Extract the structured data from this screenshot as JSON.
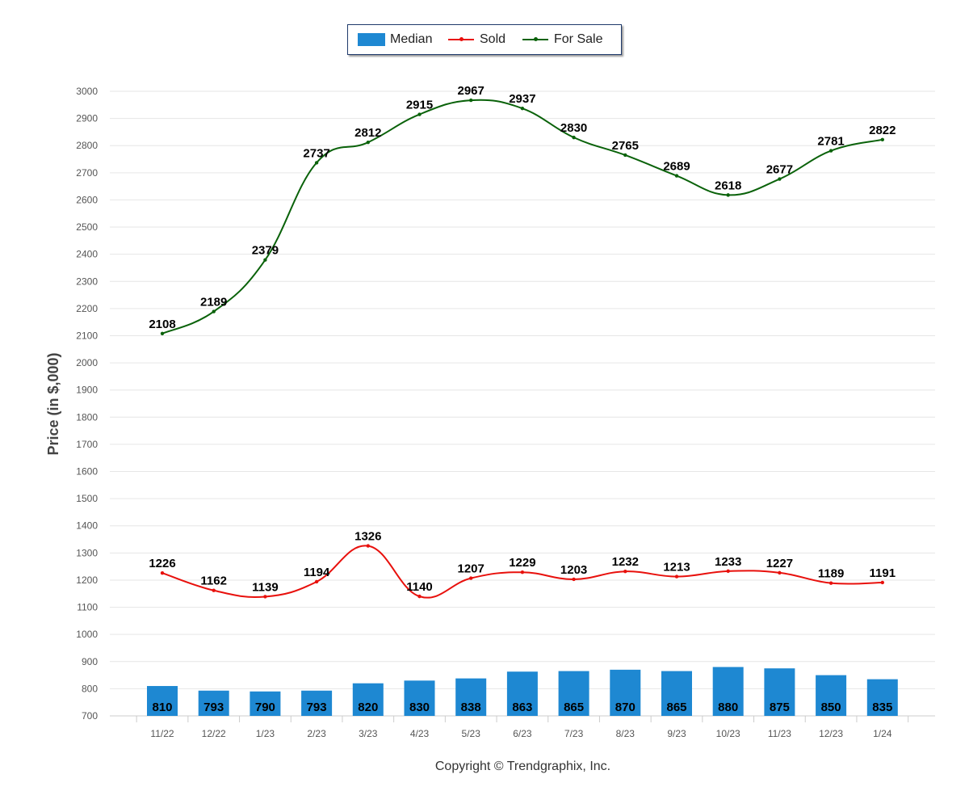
{
  "legend": {
    "median": "Median",
    "sold": "Sold",
    "for_sale": "For Sale"
  },
  "footer": {
    "copyright": "Copyright © Trendgraphix, Inc."
  },
  "colors": {
    "median": "#1e88d2",
    "sold": "#e8100c",
    "for_sale": "#0a620a",
    "grid": "#e6e6e6",
    "label": "#000000",
    "axis_text": "#555555"
  },
  "chart_data": {
    "type": "bar",
    "title": "",
    "xlabel": "",
    "ylabel": "Price (in $,000)",
    "ylim": [
      700,
      3000
    ],
    "yticks": [
      700,
      800,
      900,
      1000,
      1100,
      1200,
      1300,
      1400,
      1500,
      1600,
      1700,
      1800,
      1900,
      2000,
      2100,
      2200,
      2300,
      2400,
      2500,
      2600,
      2700,
      2800,
      2900,
      3000
    ],
    "grid": true,
    "legend_position": "top-center",
    "categories": [
      "11/22",
      "12/22",
      "1/23",
      "2/23",
      "3/23",
      "4/23",
      "5/23",
      "6/23",
      "7/23",
      "8/23",
      "9/23",
      "10/23",
      "11/23",
      "12/23",
      "1/24"
    ],
    "series": [
      {
        "name": "Median",
        "type": "bar",
        "values": [
          810,
          793,
          790,
          793,
          820,
          830,
          838,
          863,
          865,
          870,
          865,
          880,
          875,
          850,
          835
        ]
      },
      {
        "name": "Sold",
        "type": "line",
        "values": [
          1226,
          1162,
          1139,
          1194,
          1326,
          1140,
          1207,
          1229,
          1203,
          1232,
          1213,
          1233,
          1227,
          1189,
          1191
        ]
      },
      {
        "name": "For Sale",
        "type": "line",
        "values": [
          2108,
          2189,
          2379,
          2737,
          2812,
          2915,
          2967,
          2937,
          2830,
          2765,
          2689,
          2618,
          2677,
          2781,
          2822
        ]
      }
    ]
  }
}
